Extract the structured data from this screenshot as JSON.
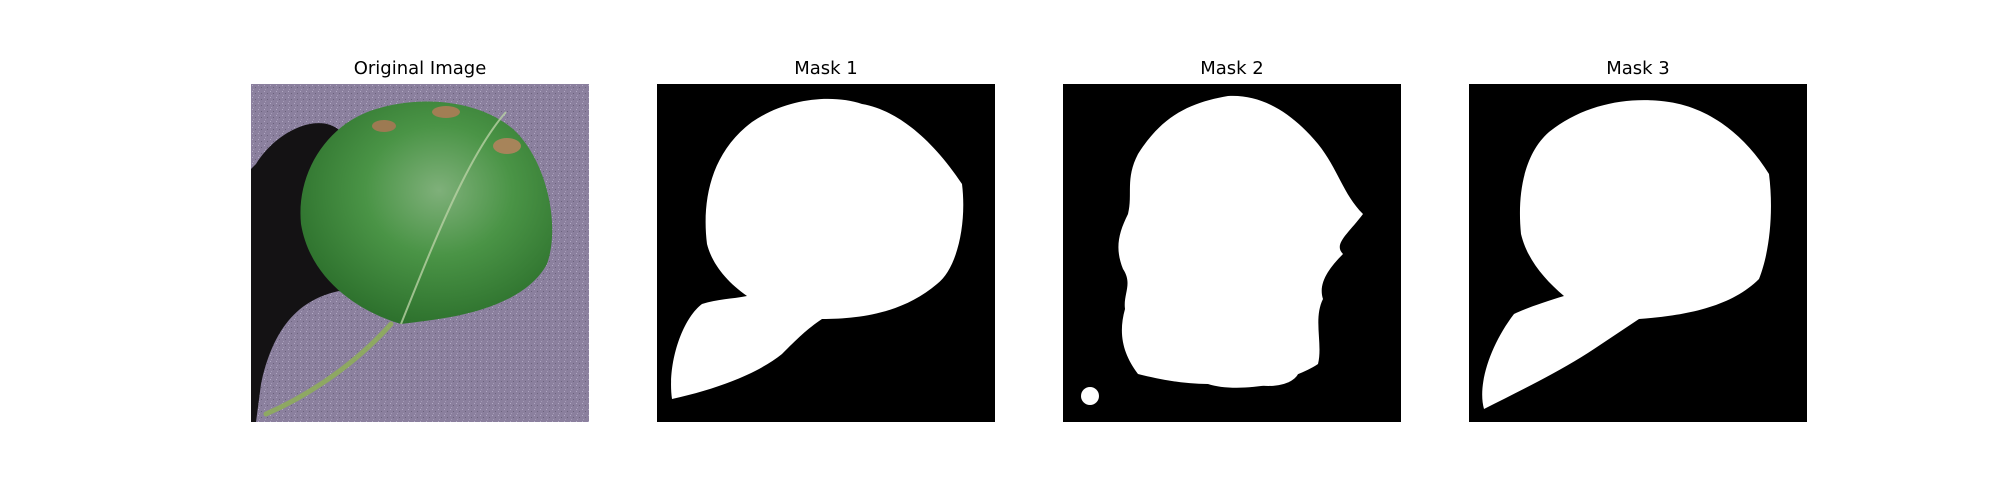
{
  "figure": {
    "panels": [
      {
        "title": "Original Image"
      },
      {
        "title": "Mask 1"
      },
      {
        "title": "Mask 2"
      },
      {
        "title": "Mask 3"
      }
    ]
  },
  "colors": {
    "mask_background": "#000000",
    "mask_foreground": "#ffffff",
    "leaf": "#3f8a3a",
    "surface": "#8a7f9c",
    "shadow": "#111111"
  }
}
